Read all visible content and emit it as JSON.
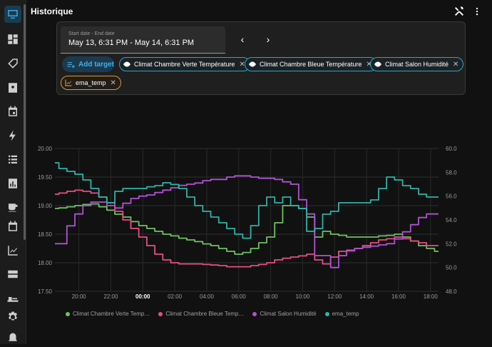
{
  "header": {
    "title": "Historique"
  },
  "date_picker": {
    "label": "Start date - End date",
    "value": "May 13, 6:31 PM - May 14, 6:31 PM"
  },
  "nav": {
    "prev": "‹",
    "next": "›"
  },
  "add_target": {
    "label": "Add target"
  },
  "chips": [
    {
      "label": "Climat Chambre Verte Température"
    },
    {
      "label": "Climat Chambre Bleue Température"
    },
    {
      "label": "Climat Salon Humidité"
    },
    {
      "label": "ema_temp"
    }
  ],
  "colors": {
    "accent": "#36a9e1",
    "green": "#6cc35e",
    "pink": "#e84e82",
    "purple": "#b052d4",
    "teal": "#2fb3a9",
    "chip_border": "#2aa5c7",
    "entity_chip": "#d49a3d"
  },
  "chart_data": {
    "type": "line",
    "x": [
      "18:31",
      "19:00",
      "19:30",
      "20:00",
      "20:30",
      "21:00",
      "21:30",
      "22:00",
      "22:30",
      "23:00",
      "23:30",
      "00:00",
      "00:30",
      "01:00",
      "01:30",
      "02:00",
      "02:30",
      "03:00",
      "03:30",
      "04:00",
      "04:30",
      "05:00",
      "05:30",
      "06:00",
      "06:30",
      "07:00",
      "07:30",
      "08:00",
      "08:30",
      "09:00",
      "09:30",
      "10:00",
      "10:30",
      "11:00",
      "11:30",
      "12:00",
      "12:30",
      "13:00",
      "13:30",
      "14:00",
      "14:30",
      "15:00",
      "15:30",
      "16:00",
      "16:30",
      "17:00",
      "17:30",
      "18:00",
      "18:31"
    ],
    "x_ticks": [
      "20:00",
      "22:00",
      "00:00",
      "02:00",
      "04:00",
      "06:00",
      "08:00",
      "10:00",
      "12:00",
      "14:00",
      "16:00",
      "18:00"
    ],
    "y_left": {
      "ticks": [
        "20.00",
        "19.50",
        "19.00",
        "18.50",
        "18.00",
        "17.50"
      ],
      "ylim": [
        17.5,
        20.0
      ]
    },
    "y_right": {
      "ticks": [
        "60.0",
        "58.0",
        "56.0",
        "54.0",
        "52.0",
        "50.0",
        "48.0"
      ],
      "ylim": [
        48.0,
        60.0
      ]
    },
    "series": [
      {
        "name": "Climat Chambre Verte Temp…",
        "axis": "left",
        "color": "#6cc35e",
        "values": [
          18.95,
          18.96,
          18.98,
          19.0,
          19.02,
          19.03,
          18.98,
          18.92,
          18.85,
          18.8,
          18.72,
          18.65,
          18.6,
          18.55,
          18.5,
          18.47,
          18.43,
          18.4,
          18.37,
          18.33,
          18.3,
          18.25,
          18.2,
          18.15,
          18.18,
          18.25,
          18.35,
          18.45,
          18.7,
          19.0,
          19.0,
          18.95,
          18.8,
          18.45,
          18.55,
          18.5,
          18.48,
          18.45,
          18.45,
          18.45,
          18.45,
          18.47,
          18.48,
          18.5,
          18.45,
          18.38,
          18.3,
          18.25,
          18.2
        ]
      },
      {
        "name": "Climat Chambre Bleue Temp…",
        "axis": "left",
        "color": "#e84e82",
        "values": [
          19.2,
          19.22,
          19.25,
          19.27,
          19.25,
          19.22,
          19.15,
          19.05,
          18.9,
          18.75,
          18.6,
          18.45,
          18.3,
          18.15,
          18.05,
          18.0,
          17.98,
          17.98,
          17.98,
          17.97,
          17.96,
          17.95,
          17.93,
          17.93,
          17.93,
          17.95,
          17.97,
          18.0,
          18.05,
          18.08,
          18.1,
          18.12,
          18.15,
          18.05,
          17.98,
          18.1,
          18.2,
          18.22,
          18.25,
          18.3,
          18.35,
          18.4,
          18.42,
          18.45,
          18.42,
          18.38,
          18.35,
          18.3,
          18.3
        ]
      },
      {
        "name": "Climat Salon Humidité",
        "axis": "right",
        "color": "#b052d4",
        "values": [
          52.0,
          52.0,
          53.5,
          54.5,
          55.2,
          55.5,
          55.5,
          55.2,
          55.0,
          55.4,
          55.8,
          56.0,
          56.1,
          56.3,
          56.5,
          56.7,
          56.9,
          57.0,
          57.1,
          57.3,
          57.4,
          57.4,
          57.6,
          57.7,
          57.7,
          57.6,
          57.5,
          57.5,
          57.4,
          57.2,
          57.0,
          55.7,
          54.5,
          51.0,
          51.0,
          50.0,
          51.0,
          51.4,
          51.6,
          51.7,
          51.8,
          51.9,
          52.0,
          52.4,
          53.0,
          53.6,
          54.2,
          54.5,
          54.5
        ]
      },
      {
        "name": "ema_temp",
        "axis": "left",
        "color": "#2fb3a9",
        "values": [
          19.75,
          19.65,
          19.6,
          19.55,
          19.45,
          19.3,
          19.15,
          19.05,
          19.25,
          19.3,
          19.3,
          19.3,
          19.33,
          19.35,
          19.4,
          19.37,
          19.3,
          19.15,
          19.0,
          18.9,
          18.8,
          18.7,
          18.6,
          18.5,
          18.43,
          18.65,
          19.0,
          19.15,
          19.05,
          19.15,
          19.0,
          18.95,
          18.55,
          18.6,
          18.85,
          18.9,
          19.05,
          19.05,
          19.05,
          19.05,
          19.1,
          19.3,
          19.5,
          19.45,
          19.35,
          19.3,
          19.2,
          19.15,
          19.15
        ]
      }
    ]
  }
}
